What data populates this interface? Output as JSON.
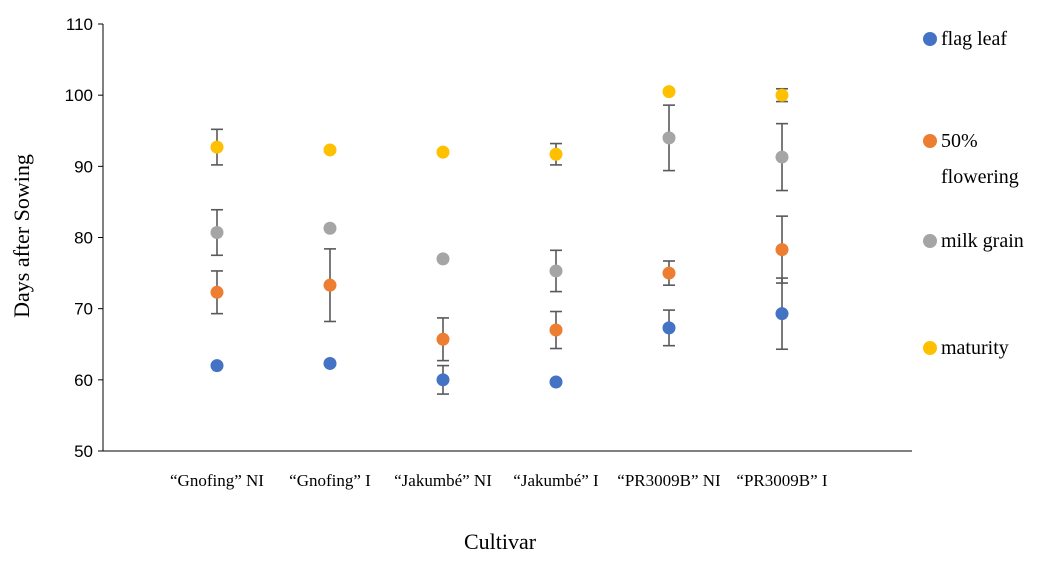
{
  "chart_data": {
    "type": "scatter",
    "title": "",
    "xlabel": "Cultivar",
    "ylabel": "Days after Sowing",
    "ylim": [
      50,
      110
    ],
    "yticks": [
      50,
      60,
      70,
      80,
      90,
      100,
      110
    ],
    "grid": false,
    "legend_position": "right",
    "categories": [
      "“Gnofing” NI",
      "“Gnofing” I",
      "“Jakumbé” NI",
      "“Jakumbé” I",
      "“PR3009B” NI",
      "“PR3009B” I"
    ],
    "series": [
      {
        "name": "flag leaf",
        "color": "#4472C4",
        "values": [
          62.0,
          62.3,
          60.0,
          59.7,
          67.3,
          69.3
        ],
        "error": [
          null,
          null,
          2.0,
          null,
          2.5,
          5.0
        ]
      },
      {
        "name": "50% flowering",
        "color": "#ED7D31",
        "values": [
          72.3,
          73.3,
          65.7,
          67.0,
          75.0,
          78.3
        ],
        "error": [
          3.0,
          5.1,
          3.0,
          2.6,
          1.7,
          4.7
        ]
      },
      {
        "name": "milk grain",
        "color": "#A5A5A5",
        "values": [
          80.7,
          81.3,
          77.0,
          75.3,
          94.0,
          91.3
        ],
        "error": [
          3.2,
          null,
          null,
          2.9,
          4.6,
          4.7
        ]
      },
      {
        "name": "maturity",
        "color": "#FFC000",
        "values": [
          92.7,
          92.3,
          92.0,
          91.7,
          100.5,
          100.0
        ],
        "error": [
          2.5,
          null,
          null,
          1.5,
          null,
          0.9
        ]
      }
    ]
  }
}
